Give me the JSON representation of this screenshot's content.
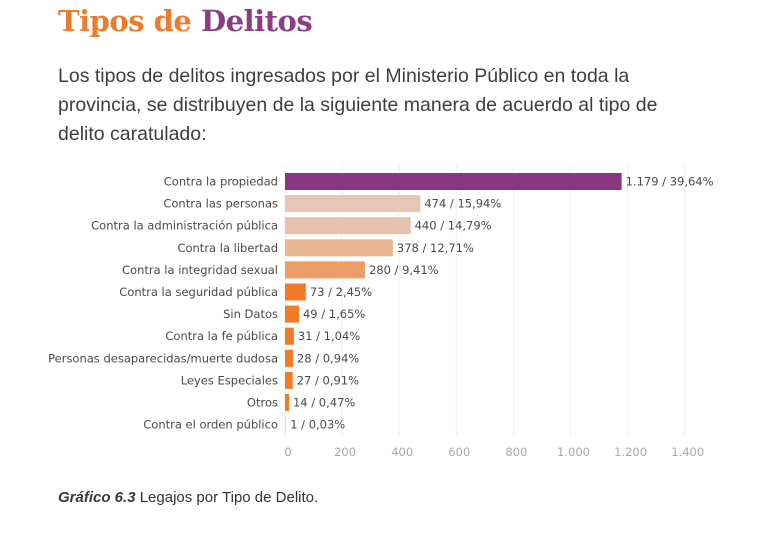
{
  "header": {
    "title_part1": "Tipos de",
    "title_part2": "Delitos",
    "title_colors": [
      "#ee7a2b",
      "#8c3d86"
    ]
  },
  "intro": "Los tipos de delitos ingresados por el Ministerio Público en toda la provincia, se distribuyen de la siguiente manera de acuerdo al tipo de delito caratulado:",
  "caption": {
    "label": "Gráfico 6.3",
    "text": " Legajos por Tipo de Delito."
  },
  "chart_data": {
    "type": "bar",
    "orientation": "horizontal",
    "title": "",
    "xlabel": "",
    "ylabel": "",
    "categories": [
      "Contra la propiedad",
      "Contra las personas",
      "Contra la administración pública",
      "Contra la libertad",
      "Contra la integridad sexual",
      "Contra la seguridad pública",
      "Sin Datos",
      "Contra la fe pública",
      "Personas desaparecidas/muerte dudosa",
      "Leyes Especiales",
      "Otros",
      "Contra el orden público"
    ],
    "values": [
      1179,
      474,
      440,
      378,
      280,
      73,
      49,
      31,
      28,
      27,
      14,
      1
    ],
    "data_labels": [
      "1.179 / 39,64%",
      "474 / 15,94%",
      "440 / 14,79%",
      "378 / 12,71%",
      "280 / 9,41%",
      "73 / 2,45%",
      "49 / 1,65%",
      "31 / 1,04%",
      "28 / 0,94%",
      "27 / 0,91%",
      "14 / 0,47%",
      "1 / 0,03%"
    ],
    "percentages": [
      39.64,
      15.94,
      14.79,
      12.71,
      9.41,
      2.45,
      1.65,
      1.04,
      0.94,
      0.91,
      0.47,
      0.03
    ],
    "colors": [
      "#8a3580",
      "#e6c7b4",
      "#e5c2ab",
      "#e8b693",
      "#ec9e69",
      "#f37a26",
      "#f37a26",
      "#f37a26",
      "#f37a26",
      "#f37a26",
      "#f37a26",
      "#e8d8cc"
    ],
    "xlim": [
      0,
      1550
    ],
    "xticks": [
      0,
      200,
      400,
      600,
      800,
      1000,
      1200,
      1400
    ],
    "xtick_labels": [
      "0",
      "200",
      "400",
      "600",
      "800",
      "1.000",
      "1.200",
      "1.400"
    ],
    "grid": true,
    "legend": "none"
  }
}
